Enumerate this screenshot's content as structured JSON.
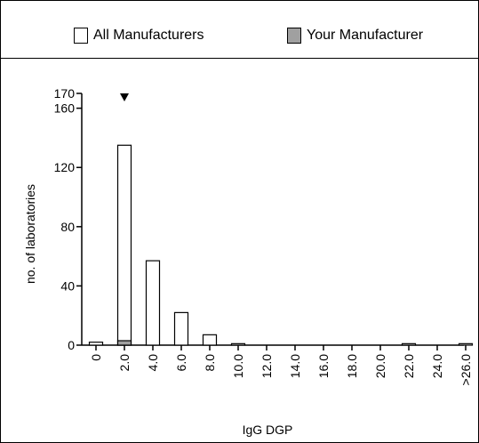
{
  "legend": {
    "all_label": "All Manufacturers",
    "yours_label": "Your Manufacturer"
  },
  "colors": {
    "all_fill": "#ffffff",
    "yours_fill": "#a0a0a0",
    "stroke": "#000000"
  },
  "chart_data": {
    "type": "bar",
    "xlabel": "IgG DGP",
    "ylabel": "no. of laboratories",
    "ylim": [
      0,
      170
    ],
    "yticks": [
      0,
      40,
      80,
      120,
      160,
      170
    ],
    "categories": [
      "0",
      "2.0",
      "4.0",
      "6.0",
      "8.0",
      "10.0",
      "12.0",
      "14.0",
      "16.0",
      "18.0",
      "20.0",
      "22.0",
      "24.0",
      ">26.0"
    ],
    "series": [
      {
        "name": "All Manufacturers",
        "values": [
          2,
          135,
          57,
          22,
          7,
          1,
          0,
          0,
          0,
          0,
          0,
          1,
          0,
          1
        ]
      },
      {
        "name": "Your Manufacturer",
        "values": [
          0,
          3,
          0,
          0,
          0,
          0,
          0,
          0,
          0,
          0,
          0,
          0,
          0,
          0
        ]
      }
    ],
    "marker_category": "2.0"
  }
}
